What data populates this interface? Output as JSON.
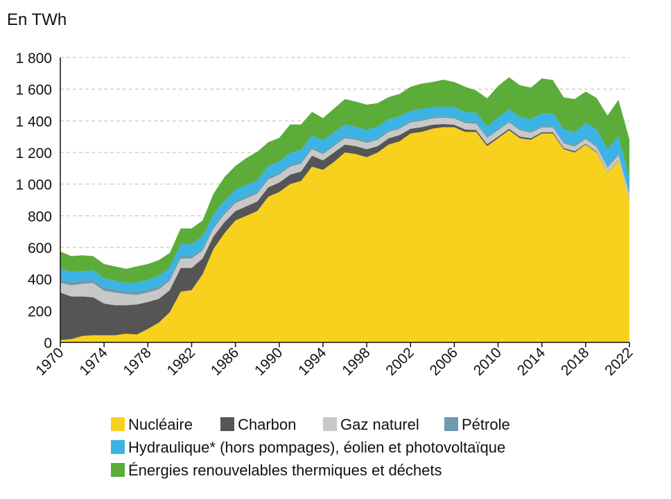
{
  "chart_data": {
    "type": "stacked_area",
    "y_label": "En TWh",
    "x": [
      1970,
      1971,
      1972,
      1973,
      1974,
      1975,
      1976,
      1977,
      1978,
      1979,
      1980,
      1981,
      1982,
      1983,
      1984,
      1985,
      1986,
      1987,
      1988,
      1989,
      1990,
      1991,
      1992,
      1993,
      1994,
      1995,
      1996,
      1997,
      1998,
      1999,
      2000,
      2001,
      2002,
      2003,
      2004,
      2005,
      2006,
      2007,
      2008,
      2009,
      2010,
      2011,
      2012,
      2013,
      2014,
      2015,
      2016,
      2017,
      2018,
      2019,
      2020,
      2021,
      2022
    ],
    "xlim": [
      1970,
      2022
    ],
    "xticks": [
      1970,
      1974,
      1978,
      1982,
      1986,
      1990,
      1994,
      1998,
      2002,
      2006,
      2010,
      2014,
      2018,
      2022
    ],
    "ylim": [
      0,
      1800
    ],
    "yticks": [
      0,
      200,
      400,
      600,
      800,
      {
        "value": 1000,
        "label": "1 000"
      },
      {
        "value": 1200,
        "label": "1 200"
      },
      {
        "value": 1400,
        "label": "1 400"
      },
      {
        "value": 1600,
        "label": "1 600"
      },
      {
        "value": 1800,
        "label": "1 800"
      }
    ],
    "grid": true,
    "series": [
      {
        "name": "Nucléaire",
        "color": "#f8d11f",
        "values": [
          15,
          20,
          40,
          45,
          45,
          45,
          55,
          50,
          85,
          125,
          190,
          320,
          330,
          430,
          590,
          690,
          770,
          800,
          830,
          920,
          950,
          1000,
          1020,
          1110,
          1090,
          1140,
          1200,
          1190,
          1170,
          1200,
          1250,
          1270,
          1320,
          1330,
          1350,
          1360,
          1360,
          1330,
          1330,
          1240,
          1290,
          1340,
          1290,
          1280,
          1320,
          1320,
          1220,
          1200,
          1250,
          1200,
          1070,
          1150,
          900
        ]
      },
      {
        "name": "Charbon",
        "color": "#555555",
        "values": [
          300,
          270,
          250,
          240,
          200,
          190,
          180,
          190,
          170,
          150,
          140,
          150,
          140,
          100,
          80,
          70,
          60,
          60,
          60,
          60,
          60,
          60,
          60,
          70,
          60,
          60,
          50,
          50,
          50,
          40,
          40,
          40,
          30,
          30,
          25,
          20,
          15,
          15,
          12,
          12,
          10,
          10,
          10,
          10,
          8,
          8,
          8,
          8,
          5,
          5,
          3,
          3,
          3
        ]
      },
      {
        "name": "Gaz naturel",
        "color": "#c8c8c8",
        "values": [
          60,
          70,
          80,
          90,
          80,
          80,
          70,
          60,
          60,
          60,
          60,
          60,
          60,
          50,
          50,
          50,
          50,
          50,
          50,
          50,
          50,
          50,
          50,
          40,
          40,
          40,
          40,
          40,
          40,
          40,
          40,
          40,
          40,
          40,
          40,
          40,
          40,
          40,
          40,
          40,
          40,
          40,
          40,
          35,
          30,
          30,
          30,
          30,
          30,
          30,
          30,
          30,
          30
        ]
      },
      {
        "name": "Pétrole",
        "color": "#6b9bad",
        "values": [
          20,
          20,
          20,
          20,
          20,
          20,
          20,
          20,
          20,
          20,
          15,
          15,
          15,
          15,
          15,
          15,
          15,
          15,
          15,
          15,
          12,
          12,
          12,
          12,
          12,
          12,
          12,
          12,
          12,
          12,
          10,
          10,
          10,
          10,
          10,
          10,
          10,
          10,
          10,
          10,
          10,
          10,
          10,
          10,
          10,
          10,
          10,
          10,
          10,
          10,
          10,
          10,
          10
        ]
      },
      {
        "name": "Hydraulique* (hors pompages), éolien et photovoltaïque",
        "color": "#3bb3e4",
        "values": [
          70,
          65,
          60,
          60,
          60,
          55,
          50,
          60,
          60,
          65,
          70,
          75,
          75,
          75,
          75,
          70,
          70,
          70,
          70,
          70,
          70,
          75,
          75,
          75,
          75,
          75,
          75,
          70,
          70,
          70,
          70,
          70,
          65,
          65,
          60,
          60,
          60,
          60,
          60,
          60,
          70,
          75,
          75,
          75,
          80,
          80,
          80,
          80,
          90,
          100,
          110,
          110,
          100
        ]
      },
      {
        "name": "Énergies renouvelables thermiques et déchets",
        "color": "#5cac3a",
        "values": [
          110,
          100,
          100,
          90,
          90,
          90,
          90,
          100,
          100,
          100,
          90,
          100,
          100,
          100,
          130,
          150,
          150,
          170,
          180,
          150,
          150,
          180,
          160,
          150,
          140,
          150,
          160,
          160,
          160,
          150,
          140,
          140,
          150,
          160,
          160,
          170,
          160,
          160,
          140,
          180,
          200,
          200,
          200,
          200,
          220,
          210,
          200,
          210,
          200,
          200,
          210,
          230,
          240
        ]
      }
    ]
  }
}
